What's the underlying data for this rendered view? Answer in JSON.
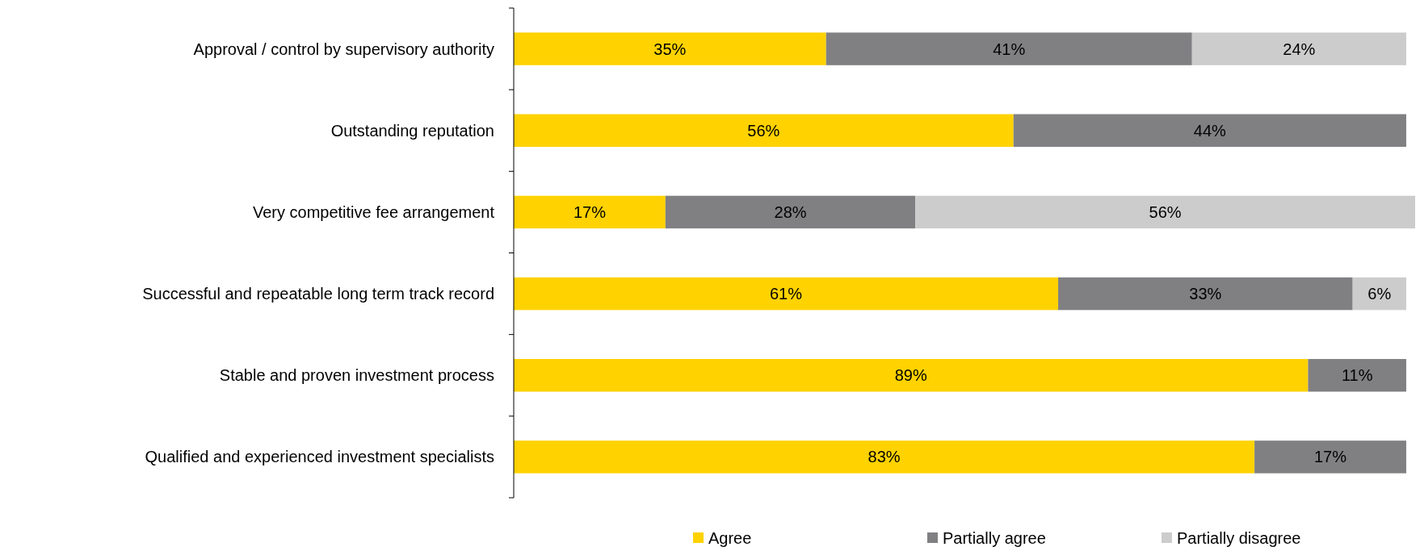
{
  "chart_data": {
    "type": "bar",
    "orientation": "horizontal",
    "stacked": true,
    "categories": [
      "Approval / control by supervisory authority",
      "Outstanding reputation",
      "Very competitive fee arrangement",
      "Successful and repeatable long term track record",
      "Stable and proven investment process",
      "Qualified and experienced investment specialists"
    ],
    "xlim": [
      0,
      101
    ],
    "series": [
      {
        "name": "Agree",
        "color": "#ffd200",
        "values": [
          35,
          56,
          17,
          61,
          89,
          83
        ],
        "value_labels": [
          "35%",
          "56%",
          "17%",
          "61%",
          "89%",
          "83%"
        ]
      },
      {
        "name": "Partially agree",
        "color": "#808083",
        "values": [
          41,
          44,
          28,
          33,
          11,
          17
        ],
        "value_labels": [
          "41%",
          "44%",
          "28%",
          "33%",
          "11%",
          "17%"
        ]
      },
      {
        "name": "Partially disagree",
        "color": "#cccccc",
        "values": [
          24,
          0,
          56,
          6,
          0,
          0
        ],
        "value_labels": [
          "24%",
          null,
          "56%",
          "6%",
          null,
          null
        ]
      }
    ],
    "legend": "bottom",
    "tick_labels": "y"
  }
}
